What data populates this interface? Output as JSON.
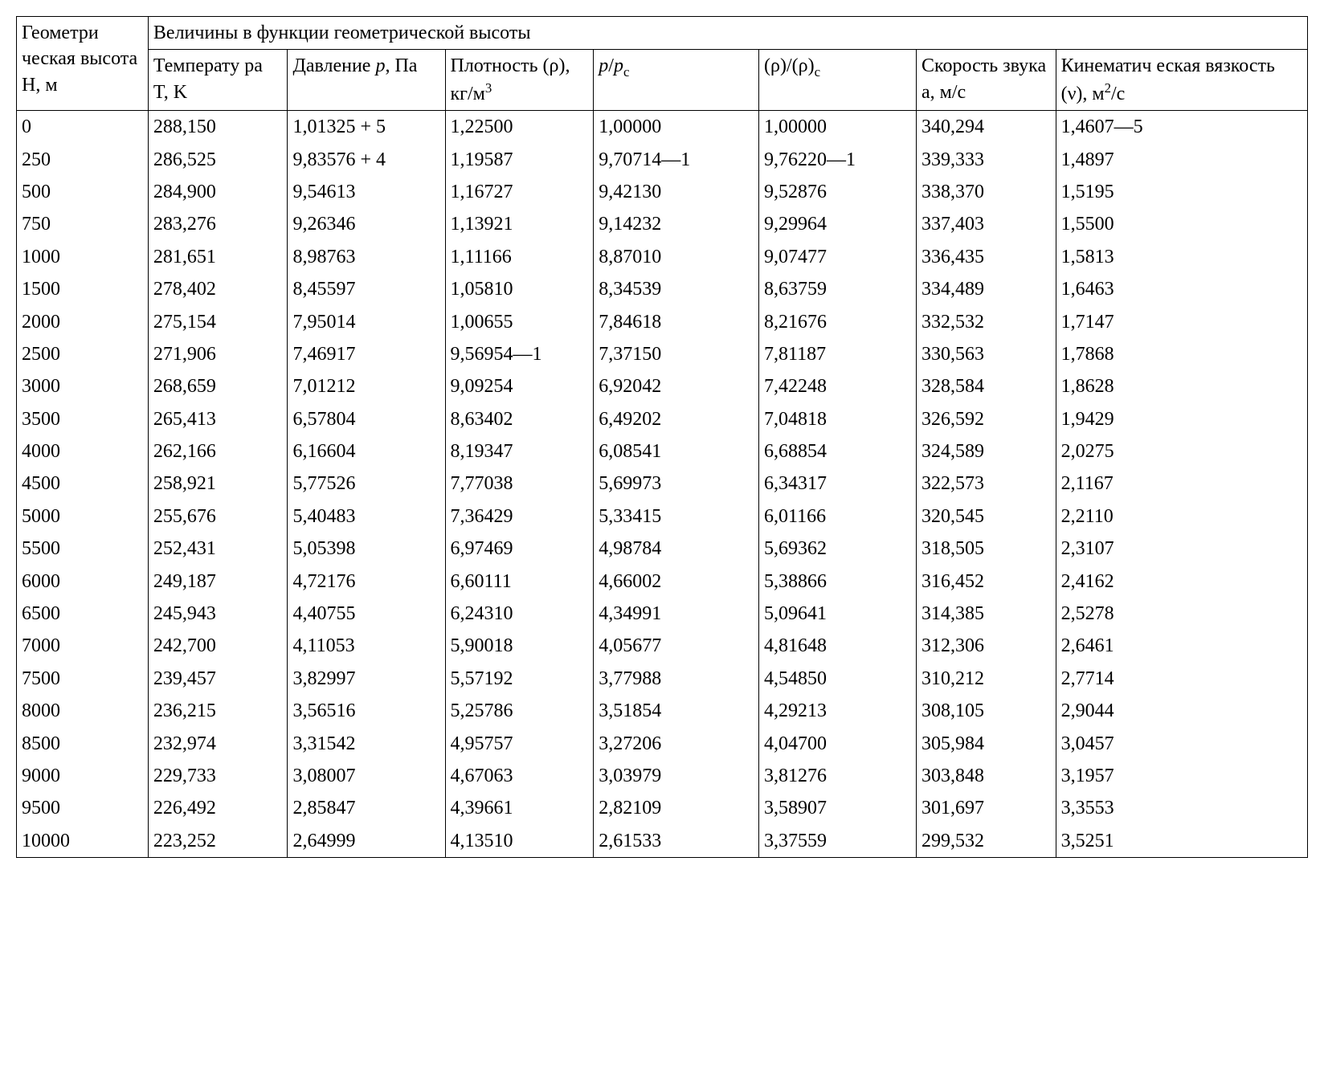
{
  "table": {
    "border_color": "#000000",
    "background_color": "#ffffff",
    "text_color": "#000000",
    "font_family": "Times New Roman",
    "font_size_pt": 18,
    "col_widths_pct": [
      10.2,
      10.8,
      12.2,
      11.5,
      12.8,
      12.2,
      10.8,
      19.5
    ],
    "header": {
      "corner": "Геометри ческая высота H, м",
      "group": "Величины в функции геометрической высоты",
      "cols": [
        "Температу ра T, K",
        "Давление p, Па",
        "Плотность (ρ), кг/м³",
        "p/pс",
        "(ρ)/(ρ)с",
        "Скорость звука a, м/с",
        "Кинематич еская вязкость (ν), м²/с"
      ]
    },
    "rows": [
      [
        "0",
        "288,150",
        "1,01325 + 5",
        "1,22500",
        "1,00000",
        "1,00000",
        "340,294",
        "1,4607—5"
      ],
      [
        "250",
        "286,525",
        "9,83576 + 4",
        "1,19587",
        "9,70714—1",
        "9,76220—1",
        "339,333",
        "1,4897"
      ],
      [
        "500",
        "284,900",
        "9,54613",
        "1,16727",
        "9,42130",
        "9,52876",
        "338,370",
        "1,5195"
      ],
      [
        "750",
        "283,276",
        "9,26346",
        "1,13921",
        "9,14232",
        "9,29964",
        "337,403",
        "1,5500"
      ],
      [
        "1000",
        "281,651",
        "8,98763",
        "1,11166",
        "8,87010",
        "9,07477",
        "336,435",
        "1,5813"
      ],
      [
        "1500",
        "278,402",
        "8,45597",
        "1,05810",
        "8,34539",
        "8,63759",
        "334,489",
        "1,6463"
      ],
      [
        "2000",
        "275,154",
        "7,95014",
        "1,00655",
        "7,84618",
        "8,21676",
        "332,532",
        "1,7147"
      ],
      [
        "2500",
        "271,906",
        "7,46917",
        "9,56954—1",
        "7,37150",
        "7,81187",
        "330,563",
        "1,7868"
      ],
      [
        "3000",
        "268,659",
        "7,01212",
        "9,09254",
        "6,92042",
        "7,42248",
        "328,584",
        "1,8628"
      ],
      [
        "3500",
        "265,413",
        "6,57804",
        "8,63402",
        "6,49202",
        "7,04818",
        "326,592",
        "1,9429"
      ],
      [
        "4000",
        "262,166",
        "6,16604",
        "8,19347",
        "6,08541",
        "6,68854",
        "324,589",
        "2,0275"
      ],
      [
        "4500",
        "258,921",
        "5,77526",
        "7,77038",
        "5,69973",
        "6,34317",
        "322,573",
        "2,1167"
      ],
      [
        "5000",
        "255,676",
        "5,40483",
        "7,36429",
        "5,33415",
        "6,01166",
        "320,545",
        "2,2110"
      ],
      [
        "5500",
        "252,431",
        "5,05398",
        "6,97469",
        "4,98784",
        "5,69362",
        "318,505",
        "2,3107"
      ],
      [
        "6000",
        "249,187",
        "4,72176",
        "6,60111",
        "4,66002",
        "5,38866",
        "316,452",
        "2,4162"
      ],
      [
        "6500",
        "245,943",
        "4,40755",
        "6,24310",
        "4,34991",
        "5,09641",
        "314,385",
        "2,5278"
      ],
      [
        "7000",
        "242,700",
        "4,11053",
        "5,90018",
        "4,05677",
        "4,81648",
        "312,306",
        "2,6461"
      ],
      [
        "7500",
        "239,457",
        "3,82997",
        "5,57192",
        "3,77988",
        "4,54850",
        "310,212",
        "2,7714"
      ],
      [
        "8000",
        "236,215",
        "3,56516",
        "5,25786",
        "3,51854",
        "4,29213",
        "308,105",
        "2,9044"
      ],
      [
        "8500",
        "232,974",
        "3,31542",
        "4,95757",
        "3,27206",
        "4,04700",
        "305,984",
        "3,0457"
      ],
      [
        "9000",
        "229,733",
        "3,08007",
        "4,67063",
        "3,03979",
        "3,81276",
        "303,848",
        "3,1957"
      ],
      [
        "9500",
        "226,492",
        "2,85847",
        "4,39661",
        "2,82109",
        "3,58907",
        "301,697",
        "3,3553"
      ],
      [
        "10000",
        "223,252",
        "2,64999",
        "4,13510",
        "2,61533",
        "3,37559",
        "299,532",
        "3,5251"
      ]
    ]
  }
}
